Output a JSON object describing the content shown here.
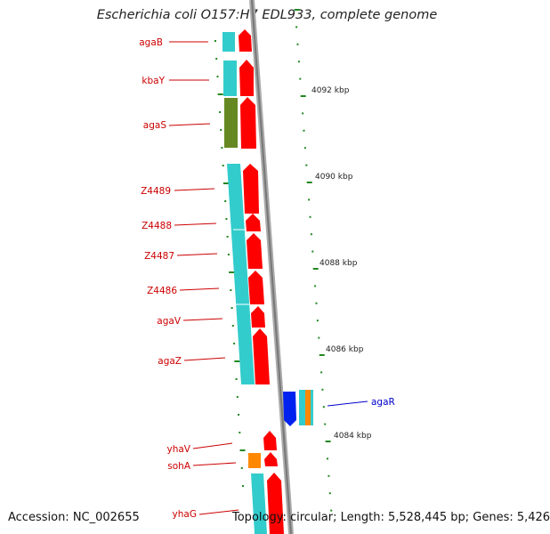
{
  "title": "Escherichia coli O157:H7 EDL933, complete genome",
  "accession": "Accession: NC_002655",
  "summary": "Topology: circular; Length: 5,528,445 bp; Genes: 5,426",
  "colors": {
    "gene_label": "#cc0000",
    "regulator_label": "#0000cc",
    "cds_forward": "#ff0000",
    "gene_forward": "#33cccc",
    "regulator_cds": "#0022ee",
    "other_feature": "#ff8800",
    "olive_feature": "#668822",
    "ticks": "#228822",
    "backbone": "#888888"
  },
  "scale_labels": [
    "4092 kbp",
    "4090 kbp",
    "4088 kbp",
    "4086 kbp",
    "4084 kbp"
  ],
  "gene_labels": [
    "agaB",
    "kbaY",
    "agaS",
    "Z4489",
    "Z4488",
    "Z4487",
    "Z4486",
    "agaV",
    "agaZ",
    "yhaV",
    "sohA",
    "yhaG"
  ],
  "regulator_labels": [
    "agaR"
  ]
}
